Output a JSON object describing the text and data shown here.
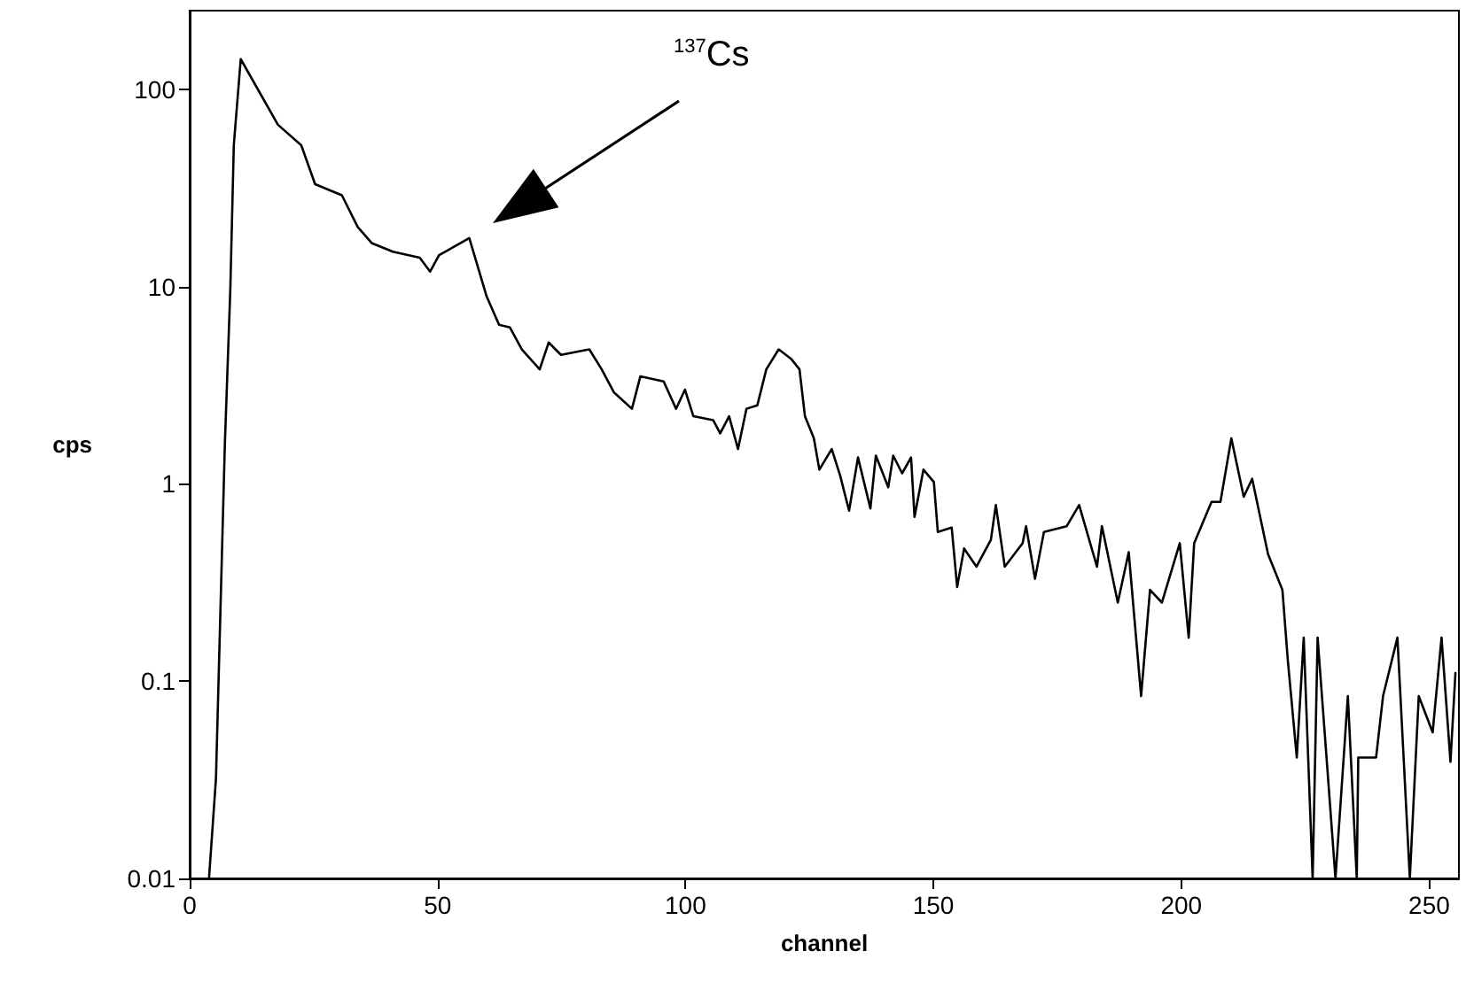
{
  "chart_data": {
    "type": "line",
    "xlabel": "channel",
    "ylabel": "cps",
    "log": "y",
    "grid": false,
    "marker": "none",
    "line_style": "solid",
    "xlim": [
      0,
      256
    ],
    "xticks": [
      0,
      50,
      100,
      150,
      200,
      250
    ],
    "ylim": [
      0.01,
      250
    ],
    "yticks": [
      0.01,
      0.1,
      1,
      10,
      100
    ],
    "annotations": [
      "$^{137}$Cs"
    ],
    "series": [
      {
        "color": "#000000",
        "x": [
          3.9,
          5.3,
          7.1,
          8.2,
          8.9,
          10.3,
          17.8,
          22.5,
          25.3,
          30.7,
          33.9,
          36.7,
          41.0,
          46.4,
          48.5,
          50.3,
          56.4,
          59.9,
          62.4,
          64.6,
          67.0,
          70.6,
          72.4,
          74.9,
          80.6,
          83.1,
          85.6,
          89.2,
          90.9,
          95.6,
          98.1,
          99.9,
          101.6,
          105.6,
          107.0,
          108.8,
          110.6,
          112.3,
          114.5,
          116.3,
          118.8,
          121.3,
          123.0,
          124.1,
          125.9,
          127.0,
          129.5,
          131.2,
          133.0,
          134.8,
          137.3,
          138.4,
          140.9,
          141.9,
          143.7,
          145.5,
          146.2,
          148.0,
          150.1,
          150.9,
          153.7,
          154.8,
          156.2,
          158.7,
          161.6,
          162.6,
          164.4,
          168.0,
          168.7,
          170.5,
          172.3,
          176.9,
          179.4,
          183.0,
          184.0,
          187.2,
          189.4,
          191.9,
          193.7,
          196.1,
          199.7,
          201.5,
          202.6,
          206.1,
          207.9,
          210.1,
          212.6,
          214.3,
          217.5,
          220.4,
          221.5,
          223.3,
          224.7,
          226.5,
          227.5,
          229.3,
          231.1,
          233.6,
          235.4,
          235.7,
          239.3,
          240.7,
          243.6,
          246.1,
          247.9,
          250.7,
          252.5,
          254.3,
          255.3
        ],
        "values": [
          0.01,
          0.032,
          1.6,
          9.7,
          52,
          142,
          66,
          52,
          33,
          29,
          20,
          16.6,
          15,
          14,
          11.9,
          14.4,
          17.6,
          8.9,
          6.4,
          6.2,
          4.8,
          3.8,
          5.2,
          4.5,
          4.8,
          3.8,
          2.9,
          2.4,
          3.5,
          3.3,
          2.4,
          3.0,
          2.2,
          2.1,
          1.8,
          2.2,
          1.5,
          2.4,
          2.5,
          3.8,
          4.8,
          4.3,
          3.8,
          2.2,
          1.7,
          1.18,
          1.5,
          1.1,
          0.73,
          1.36,
          0.75,
          1.39,
          0.96,
          1.39,
          1.13,
          1.36,
          0.68,
          1.18,
          1.02,
          0.57,
          0.6,
          0.3,
          0.47,
          0.38,
          0.52,
          0.78,
          0.38,
          0.5,
          0.61,
          0.33,
          0.57,
          0.61,
          0.78,
          0.38,
          0.61,
          0.25,
          0.45,
          0.084,
          0.29,
          0.25,
          0.5,
          0.166,
          0.5,
          0.81,
          0.81,
          1.7,
          0.86,
          1.06,
          0.44,
          0.29,
          0.127,
          0.041,
          0.166,
          0.01,
          0.166,
          0.041,
          0.01,
          0.084,
          0.01,
          0.041,
          0.041,
          0.084,
          0.166,
          0.01,
          0.084,
          0.055,
          0.166,
          0.039,
          0.11
        ]
      }
    ]
  }
}
